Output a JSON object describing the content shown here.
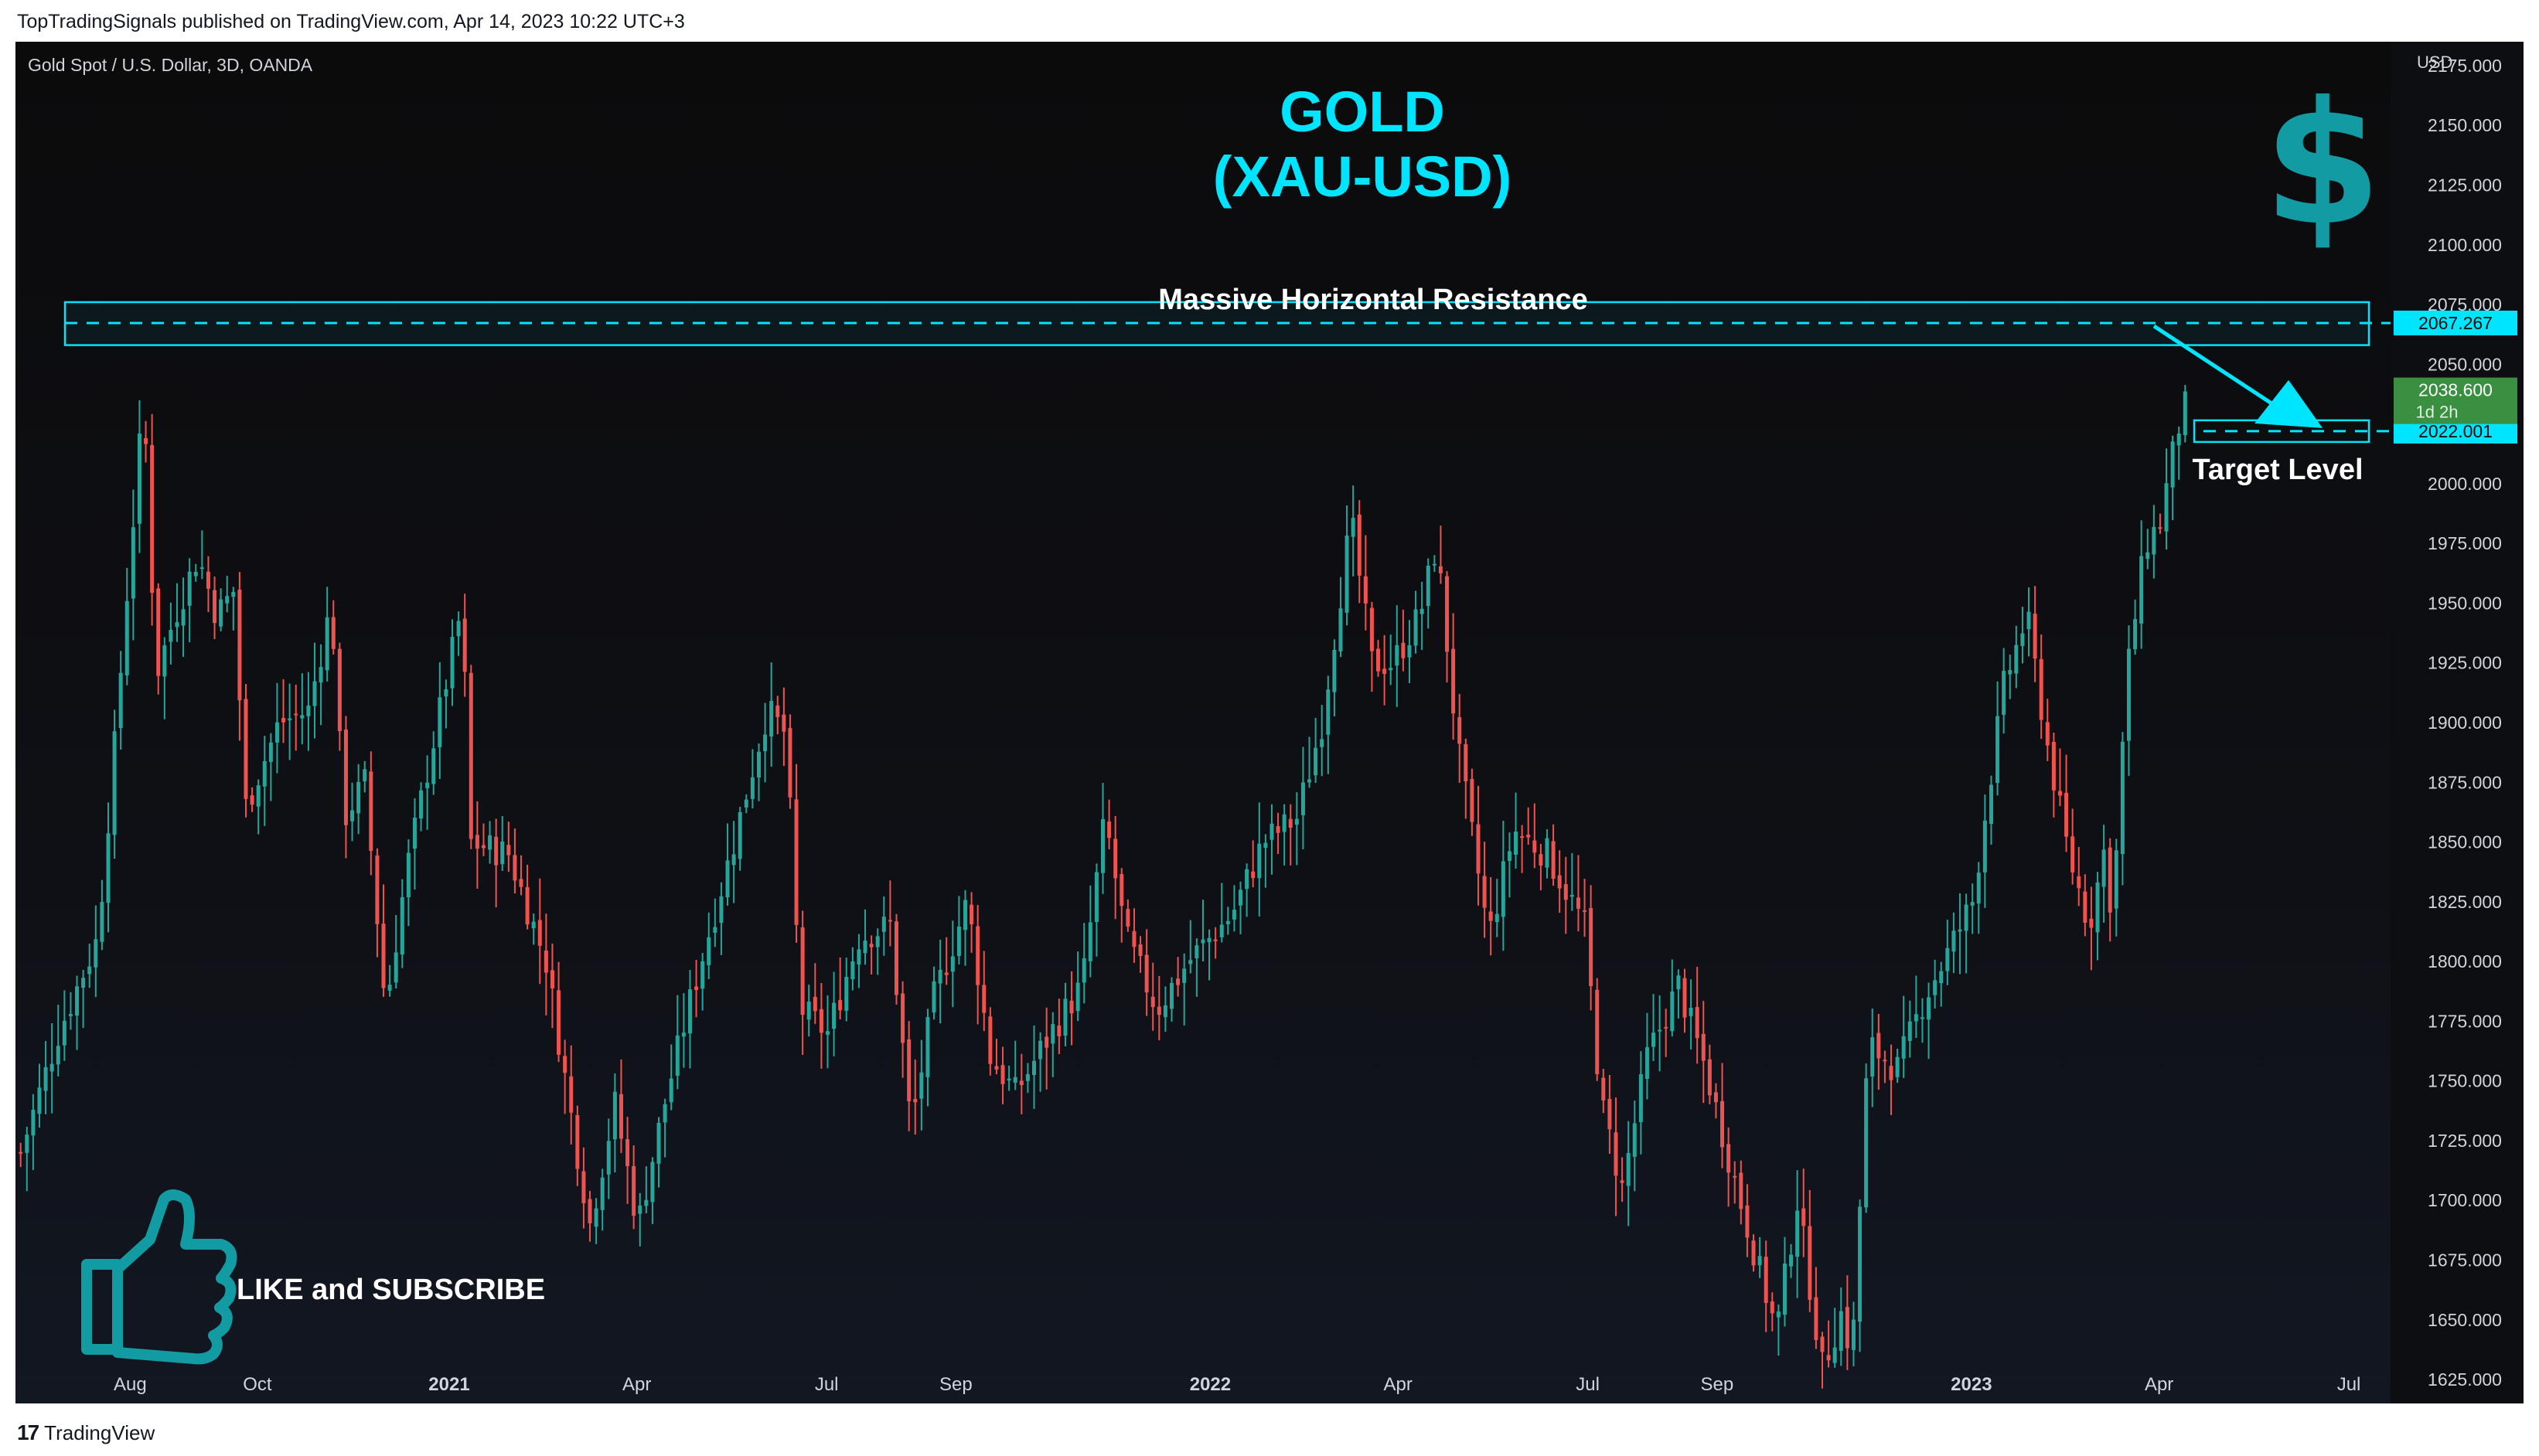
{
  "header": {
    "published_line": "TopTradingSignals published on TradingView.com, Apr 14, 2023 10:22 UTC+3"
  },
  "footer": {
    "brand": "TradingView",
    "logo_glyph": "17"
  },
  "colors": {
    "up": "#26a69a",
    "down": "#ef5350",
    "accent": "#00e5ff",
    "teal_icon": "#139ba3",
    "last_price_bg": "#3a8f41"
  },
  "chart_data": {
    "type": "candlestick",
    "symbol_line": "Gold Spot / U.S. Dollar, 3D, OANDA",
    "currency": "USD",
    "title_line1": "GOLD",
    "title_line2": "(XAU-USD)",
    "ylim": [
      1615,
      2185
    ],
    "y_ticks": [
      "2175.000",
      "2150.000",
      "2125.000",
      "2100.000",
      "2075.000",
      "2050.000",
      "2025.000",
      "2000.000",
      "1975.000",
      "1950.000",
      "1925.000",
      "1900.000",
      "1875.000",
      "1850.000",
      "1825.000",
      "1800.000",
      "1775.000",
      "1750.000",
      "1725.000",
      "1700.000",
      "1675.000",
      "1650.000",
      "1625.000"
    ],
    "x_ticks": [
      {
        "label": "Aug",
        "date": "2020-08-01",
        "bold": false
      },
      {
        "label": "Oct",
        "date": "2020-10-01",
        "bold": false
      },
      {
        "label": "2021",
        "date": "2021-01-01",
        "bold": true
      },
      {
        "label": "Apr",
        "date": "2021-04-01",
        "bold": false
      },
      {
        "label": "Jul",
        "date": "2021-07-01",
        "bold": false
      },
      {
        "label": "Sep",
        "date": "2021-09-01",
        "bold": false
      },
      {
        "label": "2022",
        "date": "2022-01-01",
        "bold": true
      },
      {
        "label": "Apr",
        "date": "2022-04-01",
        "bold": false
      },
      {
        "label": "Jul",
        "date": "2022-07-01",
        "bold": false
      },
      {
        "label": "Sep",
        "date": "2022-09-01",
        "bold": false
      },
      {
        "label": "2023",
        "date": "2023-01-01",
        "bold": true
      },
      {
        "label": "Apr",
        "date": "2023-04-01",
        "bold": false
      },
      {
        "label": "Jul",
        "date": "2023-07-01",
        "bold": false
      }
    ],
    "date_range": [
      "2020-06-07",
      "2023-07-21"
    ],
    "close_path": [
      [
        "2020-06-08",
        1720
      ],
      [
        "2020-06-26",
        1770
      ],
      [
        "2020-07-15",
        1810
      ],
      [
        "2020-07-24",
        1900
      ],
      [
        "2020-07-30",
        1965
      ],
      [
        "2020-08-06",
        2035
      ],
      [
        "2020-08-12",
        1920
      ],
      [
        "2020-08-21",
        1945
      ],
      [
        "2020-09-01",
        1970
      ],
      [
        "2020-09-10",
        1945
      ],
      [
        "2020-09-18",
        1955
      ],
      [
        "2020-09-24",
        1865
      ],
      [
        "2020-10-10",
        1900
      ],
      [
        "2020-10-24",
        1905
      ],
      [
        "2020-11-04",
        1950
      ],
      [
        "2020-11-10",
        1860
      ],
      [
        "2020-11-20",
        1875
      ],
      [
        "2020-11-30",
        1780
      ],
      [
        "2020-12-10",
        1838
      ],
      [
        "2020-12-20",
        1880
      ],
      [
        "2021-01-06",
        1950
      ],
      [
        "2021-01-09",
        1850
      ],
      [
        "2021-01-28",
        1845
      ],
      [
        "2021-02-15",
        1800
      ],
      [
        "2021-02-28",
        1730
      ],
      [
        "2021-03-08",
        1690
      ],
      [
        "2021-03-20",
        1740
      ],
      [
        "2021-03-31",
        1690
      ],
      [
        "2021-04-14",
        1745
      ],
      [
        "2021-04-24",
        1780
      ],
      [
        "2021-05-16",
        1850
      ],
      [
        "2021-06-01",
        1905
      ],
      [
        "2021-06-10",
        1895
      ],
      [
        "2021-06-17",
        1780
      ],
      [
        "2021-06-30",
        1770
      ],
      [
        "2021-07-15",
        1810
      ],
      [
        "2021-07-30",
        1815
      ],
      [
        "2021-08-09",
        1730
      ],
      [
        "2021-08-20",
        1785
      ],
      [
        "2021-09-05",
        1825
      ],
      [
        "2021-09-16",
        1760
      ],
      [
        "2021-09-28",
        1745
      ],
      [
        "2021-10-15",
        1770
      ],
      [
        "2021-10-30",
        1790
      ],
      [
        "2021-11-10",
        1860
      ],
      [
        "2021-11-20",
        1810
      ],
      [
        "2021-12-05",
        1780
      ],
      [
        "2021-12-20",
        1800
      ],
      [
        "2022-01-10",
        1820
      ],
      [
        "2022-01-25",
        1850
      ],
      [
        "2022-02-10",
        1860
      ],
      [
        "2022-02-22",
        1900
      ],
      [
        "2022-03-08",
        1985
      ],
      [
        "2022-03-18",
        1925
      ],
      [
        "2022-03-28",
        1925
      ],
      [
        "2022-04-10",
        1945
      ],
      [
        "2022-04-18",
        1975
      ],
      [
        "2022-04-28",
        1890
      ],
      [
        "2022-05-13",
        1810
      ],
      [
        "2022-05-25",
        1855
      ],
      [
        "2022-06-10",
        1845
      ],
      [
        "2022-06-28",
        1815
      ],
      [
        "2022-07-06",
        1740
      ],
      [
        "2022-07-16",
        1705
      ],
      [
        "2022-07-28",
        1760
      ],
      [
        "2022-08-12",
        1790
      ],
      [
        "2022-08-25",
        1755
      ],
      [
        "2022-09-06",
        1715
      ],
      [
        "2022-09-20",
        1670
      ],
      [
        "2022-09-28",
        1645
      ],
      [
        "2022-10-08",
        1700
      ],
      [
        "2022-10-20",
        1630
      ],
      [
        "2022-10-30",
        1655
      ],
      [
        "2022-11-03",
        1630
      ],
      [
        "2022-11-11",
        1765
      ],
      [
        "2022-11-25",
        1755
      ],
      [
        "2022-12-08",
        1785
      ],
      [
        "2022-12-20",
        1805
      ],
      [
        "2022-12-31",
        1825
      ],
      [
        "2023-01-15",
        1915
      ],
      [
        "2023-01-26",
        1945
      ],
      [
        "2023-02-05",
        1890
      ],
      [
        "2023-02-15",
        1845
      ],
      [
        "2023-02-25",
        1815
      ],
      [
        "2023-03-05",
        1850
      ],
      [
        "2023-03-08",
        1815
      ],
      [
        "2023-03-15",
        1920
      ],
      [
        "2023-03-24",
        1975
      ],
      [
        "2023-04-01",
        1985
      ],
      [
        "2023-04-04",
        2005
      ],
      [
        "2023-04-07",
        2015
      ],
      [
        "2023-04-12",
        2038.6
      ]
    ],
    "resistance": {
      "label": "Massive Horizontal Resistance",
      "level": 2067.267,
      "zone": [
        2058,
        2076
      ],
      "level_label": "2067.267"
    },
    "target": {
      "label": "Target Level",
      "level": 2022.001,
      "level_label": "2022.001"
    },
    "last_price": {
      "value": "2038.600",
      "countdown": "1d 2h"
    },
    "annotations": {
      "cta": "LIKE and SUBSCRIBE",
      "thumbs_icon": "thumbs-up-icon",
      "dollar_icon": "dollar-sign-icon",
      "dollar_glyph": "$"
    }
  }
}
